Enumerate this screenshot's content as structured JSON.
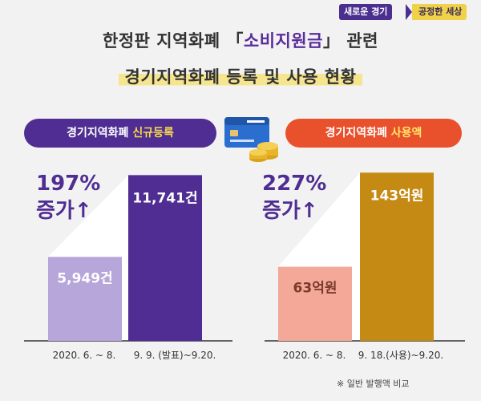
{
  "header": {
    "badge_left": "새로운 경기",
    "badge_right": "공정한 세상"
  },
  "title": {
    "line1_pre": "한정판 지역화폐 「",
    "line1_highlight": "소비지원금",
    "line1_post": "」 관련",
    "line2": "경기지역화폐 등록 및 사용 현황"
  },
  "colors": {
    "purple": "#4f2d92",
    "light_purple": "#b7a6d9",
    "gold": "#c48a14",
    "salmon": "#f3a898",
    "orange": "#e9502c",
    "yellow": "#f5e58f"
  },
  "icons": [
    "card-with-coins-icon",
    "up-arrow-icon"
  ],
  "chart_data": [
    {
      "type": "bar",
      "label_pre": "경기지역화폐 ",
      "label_accent": "신규등록",
      "categories": [
        "2020. 6. ~ 8.",
        "9. 9. (발표)~9.20."
      ],
      "values": [
        5949,
        11741
      ],
      "value_labels": [
        "5,949건",
        "11,741건"
      ],
      "increase": {
        "percent": "197%",
        "text": "증가"
      },
      "ylim": [
        0,
        12500
      ]
    },
    {
      "type": "bar",
      "label_pre": "경기지역화폐 ",
      "label_accent": "사용액",
      "categories": [
        "2020. 6. ~ 8.",
        "9. 18.(사용)~9.20."
      ],
      "values": [
        63,
        143
      ],
      "value_labels": [
        "63억원",
        "143억원"
      ],
      "increase": {
        "percent": "227%",
        "text": "증가"
      },
      "ylim": [
        0,
        150
      ]
    }
  ],
  "footnote": "※ 일반 발행액 비교"
}
